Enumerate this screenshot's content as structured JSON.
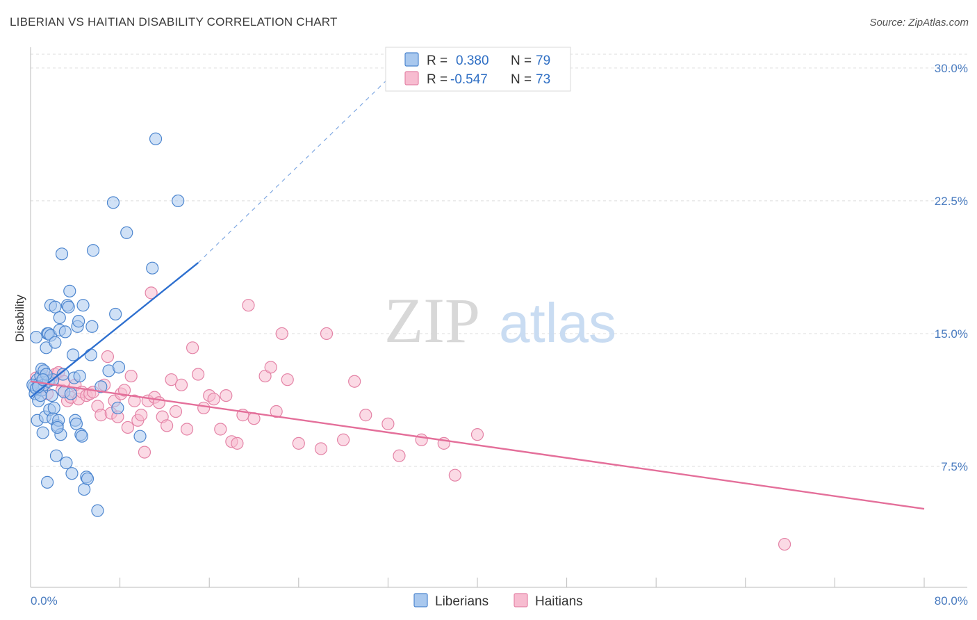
{
  "title": "LIBERIAN VS HAITIAN DISABILITY CORRELATION CHART",
  "source": "Source: ZipAtlas.com",
  "watermark": {
    "zip": "ZIP",
    "atlas": "atlas"
  },
  "colors": {
    "liberian_fill": "#a9c8ee",
    "liberian_stroke": "#4d86cf",
    "liberian_line": "#2d6fcf",
    "haitian_fill": "#f7bcd0",
    "haitian_stroke": "#e483a6",
    "haitian_line": "#e46f9a",
    "axis_text": "#4a7cc0",
    "grid": "#dddddd"
  },
  "legend": {
    "rows": [
      {
        "r_label": "R =",
        "r_value": "0.380",
        "n_label": "N =",
        "n_value": "79"
      },
      {
        "r_label": "R =",
        "r_value": "-0.547",
        "n_label": "N =",
        "n_value": "73"
      }
    ]
  },
  "bottom_legend": [
    "Liberians",
    "Haitians"
  ],
  "chart_data": {
    "type": "scatter",
    "title": "LIBERIAN VS HAITIAN DISABILITY CORRELATION CHART",
    "xlabel": "",
    "ylabel": "Disability",
    "xlim": [
      0,
      80
    ],
    "ylim": [
      0,
      31
    ],
    "x_tick_labels": [
      "0.0%",
      "80.0%"
    ],
    "y_ticks": [
      7.5,
      15.0,
      22.5,
      30.0
    ],
    "y_tick_labels": [
      "7.5%",
      "15.0%",
      "22.5%",
      "30.0%"
    ],
    "grid": true,
    "legend_position": "top-center",
    "series": [
      {
        "name": "Liberians",
        "R": 0.38,
        "N": 79,
        "trend": {
          "x": [
            0.0,
            15.0
          ],
          "y": [
            11.4,
            19.0
          ],
          "dashed_to": {
            "x": 33.0,
            "y": 30.0
          }
        },
        "points": [
          [
            0.3,
            12.0
          ],
          [
            0.4,
            11.6
          ],
          [
            0.5,
            14.8
          ],
          [
            0.6,
            10.1
          ],
          [
            0.6,
            12.4
          ],
          [
            0.7,
            11.2
          ],
          [
            0.8,
            12.2
          ],
          [
            0.9,
            12.6
          ],
          [
            1.0,
            11.8
          ],
          [
            1.0,
            13.0
          ],
          [
            1.1,
            9.4
          ],
          [
            1.2,
            12.1
          ],
          [
            1.2,
            12.9
          ],
          [
            1.3,
            10.3
          ],
          [
            1.4,
            14.2
          ],
          [
            1.5,
            15.0
          ],
          [
            1.5,
            6.6
          ],
          [
            1.6,
            12.3
          ],
          [
            1.6,
            15.0
          ],
          [
            1.7,
            10.7
          ],
          [
            1.8,
            14.9
          ],
          [
            1.8,
            16.6
          ],
          [
            1.9,
            11.5
          ],
          [
            2.0,
            12.4
          ],
          [
            2.0,
            10.2
          ],
          [
            2.1,
            10.8
          ],
          [
            2.2,
            14.5
          ],
          [
            2.2,
            16.5
          ],
          [
            2.3,
            8.1
          ],
          [
            2.4,
            9.8
          ],
          [
            2.5,
            10.1
          ],
          [
            2.6,
            15.2
          ],
          [
            2.6,
            15.9
          ],
          [
            2.7,
            9.3
          ],
          [
            2.8,
            19.5
          ],
          [
            2.9,
            12.7
          ],
          [
            3.0,
            11.7
          ],
          [
            3.1,
            15.1
          ],
          [
            3.2,
            7.7
          ],
          [
            3.3,
            16.6
          ],
          [
            3.4,
            16.5
          ],
          [
            3.5,
            17.4
          ],
          [
            3.7,
            7.1
          ],
          [
            3.8,
            13.8
          ],
          [
            3.9,
            12.5
          ],
          [
            4.0,
            10.1
          ],
          [
            4.1,
            9.9
          ],
          [
            4.2,
            15.4
          ],
          [
            4.3,
            15.7
          ],
          [
            4.4,
            12.6
          ],
          [
            4.5,
            9.3
          ],
          [
            4.6,
            9.2
          ],
          [
            4.7,
            16.6
          ],
          [
            4.8,
            6.2
          ],
          [
            5.0,
            6.9
          ],
          [
            5.1,
            6.8
          ],
          [
            5.4,
            13.8
          ],
          [
            5.5,
            15.4
          ],
          [
            5.6,
            19.7
          ],
          [
            6.0,
            5.0
          ],
          [
            6.3,
            12.0
          ],
          [
            7.0,
            12.9
          ],
          [
            7.4,
            22.4
          ],
          [
            7.6,
            16.1
          ],
          [
            7.8,
            10.8
          ],
          [
            7.9,
            13.1
          ],
          [
            8.6,
            20.7
          ],
          [
            9.8,
            9.2
          ],
          [
            10.9,
            18.7
          ],
          [
            11.2,
            26.0
          ],
          [
            13.2,
            22.5
          ],
          [
            0.2,
            12.1
          ],
          [
            0.5,
            11.9
          ],
          [
            0.9,
            11.5
          ],
          [
            1.4,
            12.7
          ],
          [
            2.4,
            9.7
          ],
          [
            3.6,
            11.6
          ],
          [
            0.7,
            12.0
          ],
          [
            1.1,
            12.4
          ]
        ]
      },
      {
        "name": "Haitians",
        "R": -0.547,
        "N": 73,
        "trend": {
          "x": [
            0.0,
            80.0
          ],
          "y": [
            12.3,
            5.1
          ]
        },
        "points": [
          [
            0.5,
            12.5
          ],
          [
            0.8,
            12.2
          ],
          [
            1.0,
            12.0
          ],
          [
            1.2,
            12.6
          ],
          [
            1.5,
            11.6
          ],
          [
            1.8,
            12.4
          ],
          [
            2.2,
            12.7
          ],
          [
            2.5,
            12.8
          ],
          [
            2.8,
            11.8
          ],
          [
            3.0,
            12.3
          ],
          [
            3.3,
            11.2
          ],
          [
            3.6,
            11.4
          ],
          [
            4.0,
            12.1
          ],
          [
            4.3,
            11.3
          ],
          [
            4.6,
            11.7
          ],
          [
            5.0,
            11.5
          ],
          [
            5.3,
            11.6
          ],
          [
            5.6,
            11.7
          ],
          [
            6.0,
            10.9
          ],
          [
            6.3,
            10.4
          ],
          [
            6.6,
            12.1
          ],
          [
            6.9,
            13.7
          ],
          [
            7.2,
            10.5
          ],
          [
            7.5,
            11.2
          ],
          [
            7.8,
            10.3
          ],
          [
            8.1,
            11.6
          ],
          [
            8.4,
            11.8
          ],
          [
            8.7,
            9.7
          ],
          [
            9.0,
            12.6
          ],
          [
            9.3,
            11.2
          ],
          [
            9.6,
            10.1
          ],
          [
            9.9,
            10.4
          ],
          [
            10.2,
            8.3
          ],
          [
            10.5,
            11.2
          ],
          [
            10.8,
            17.3
          ],
          [
            11.1,
            11.4
          ],
          [
            11.5,
            11.1
          ],
          [
            11.8,
            10.3
          ],
          [
            12.2,
            9.8
          ],
          [
            12.6,
            12.4
          ],
          [
            13.0,
            10.6
          ],
          [
            13.5,
            12.1
          ],
          [
            14.0,
            9.6
          ],
          [
            14.5,
            14.2
          ],
          [
            15.0,
            12.7
          ],
          [
            15.5,
            10.8
          ],
          [
            16.0,
            11.5
          ],
          [
            16.4,
            11.3
          ],
          [
            17.0,
            9.6
          ],
          [
            17.5,
            11.5
          ],
          [
            18.0,
            8.9
          ],
          [
            18.5,
            8.8
          ],
          [
            19.0,
            10.4
          ],
          [
            19.5,
            16.6
          ],
          [
            20.0,
            10.2
          ],
          [
            21.0,
            12.6
          ],
          [
            21.5,
            13.1
          ],
          [
            22.0,
            10.6
          ],
          [
            22.5,
            15.0
          ],
          [
            23.0,
            12.4
          ],
          [
            24.0,
            8.8
          ],
          [
            26.0,
            8.5
          ],
          [
            26.5,
            15.0
          ],
          [
            28.0,
            9.0
          ],
          [
            29.0,
            12.3
          ],
          [
            30.0,
            10.4
          ],
          [
            32.0,
            9.9
          ],
          [
            33.0,
            8.1
          ],
          [
            35.0,
            9.0
          ],
          [
            37.0,
            8.8
          ],
          [
            38.0,
            7.0
          ],
          [
            40.0,
            9.3
          ],
          [
            67.5,
            3.1
          ]
        ]
      }
    ]
  }
}
